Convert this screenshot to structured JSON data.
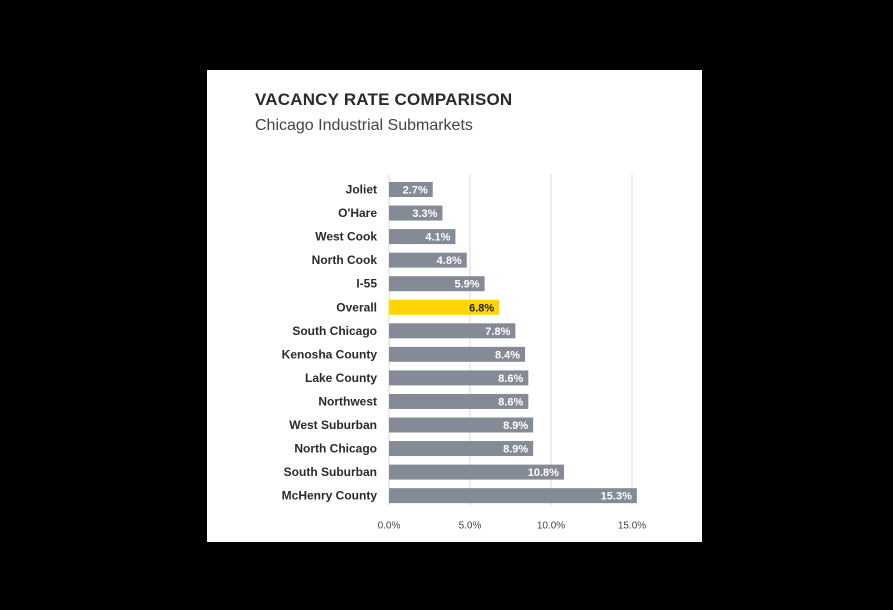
{
  "chart_data": {
    "type": "bar",
    "orientation": "horizontal",
    "title": "VACANCY RATE COMPARISON",
    "subtitle": "Chicago Industrial Submarkets",
    "categories": [
      "Joliet",
      "O'Hare",
      "West Cook",
      "North Cook",
      "I-55",
      "Overall",
      "South Chicago",
      "Kenosha County",
      "Lake County",
      "Northwest",
      "West Suburban",
      "North Chicago",
      "South Suburban",
      "McHenry County"
    ],
    "values": [
      2.7,
      3.3,
      4.1,
      4.8,
      5.9,
      6.8,
      7.8,
      8.4,
      8.6,
      8.6,
      8.9,
      8.9,
      10.8,
      15.3
    ],
    "value_labels": [
      "2.7%",
      "3.3%",
      "4.1%",
      "4.8%",
      "5.9%",
      "6.8%",
      "7.8%",
      "8.4%",
      "8.6%",
      "8.6%",
      "8.9%",
      "8.9%",
      "10.8%",
      "15.3%"
    ],
    "highlight_category": "Overall",
    "xlim": [
      0,
      15
    ],
    "xticks": [
      0,
      5,
      10,
      15
    ],
    "xtick_labels": [
      "0.0%",
      "5.0%",
      "10.0%",
      "15.0%"
    ],
    "grid": true,
    "colors": {
      "bar": "#858b96",
      "highlight": "#ffd500",
      "label_on_bar": "#ffffff",
      "label_on_highlight": "#222222",
      "grid": "#d9d9d9"
    }
  }
}
